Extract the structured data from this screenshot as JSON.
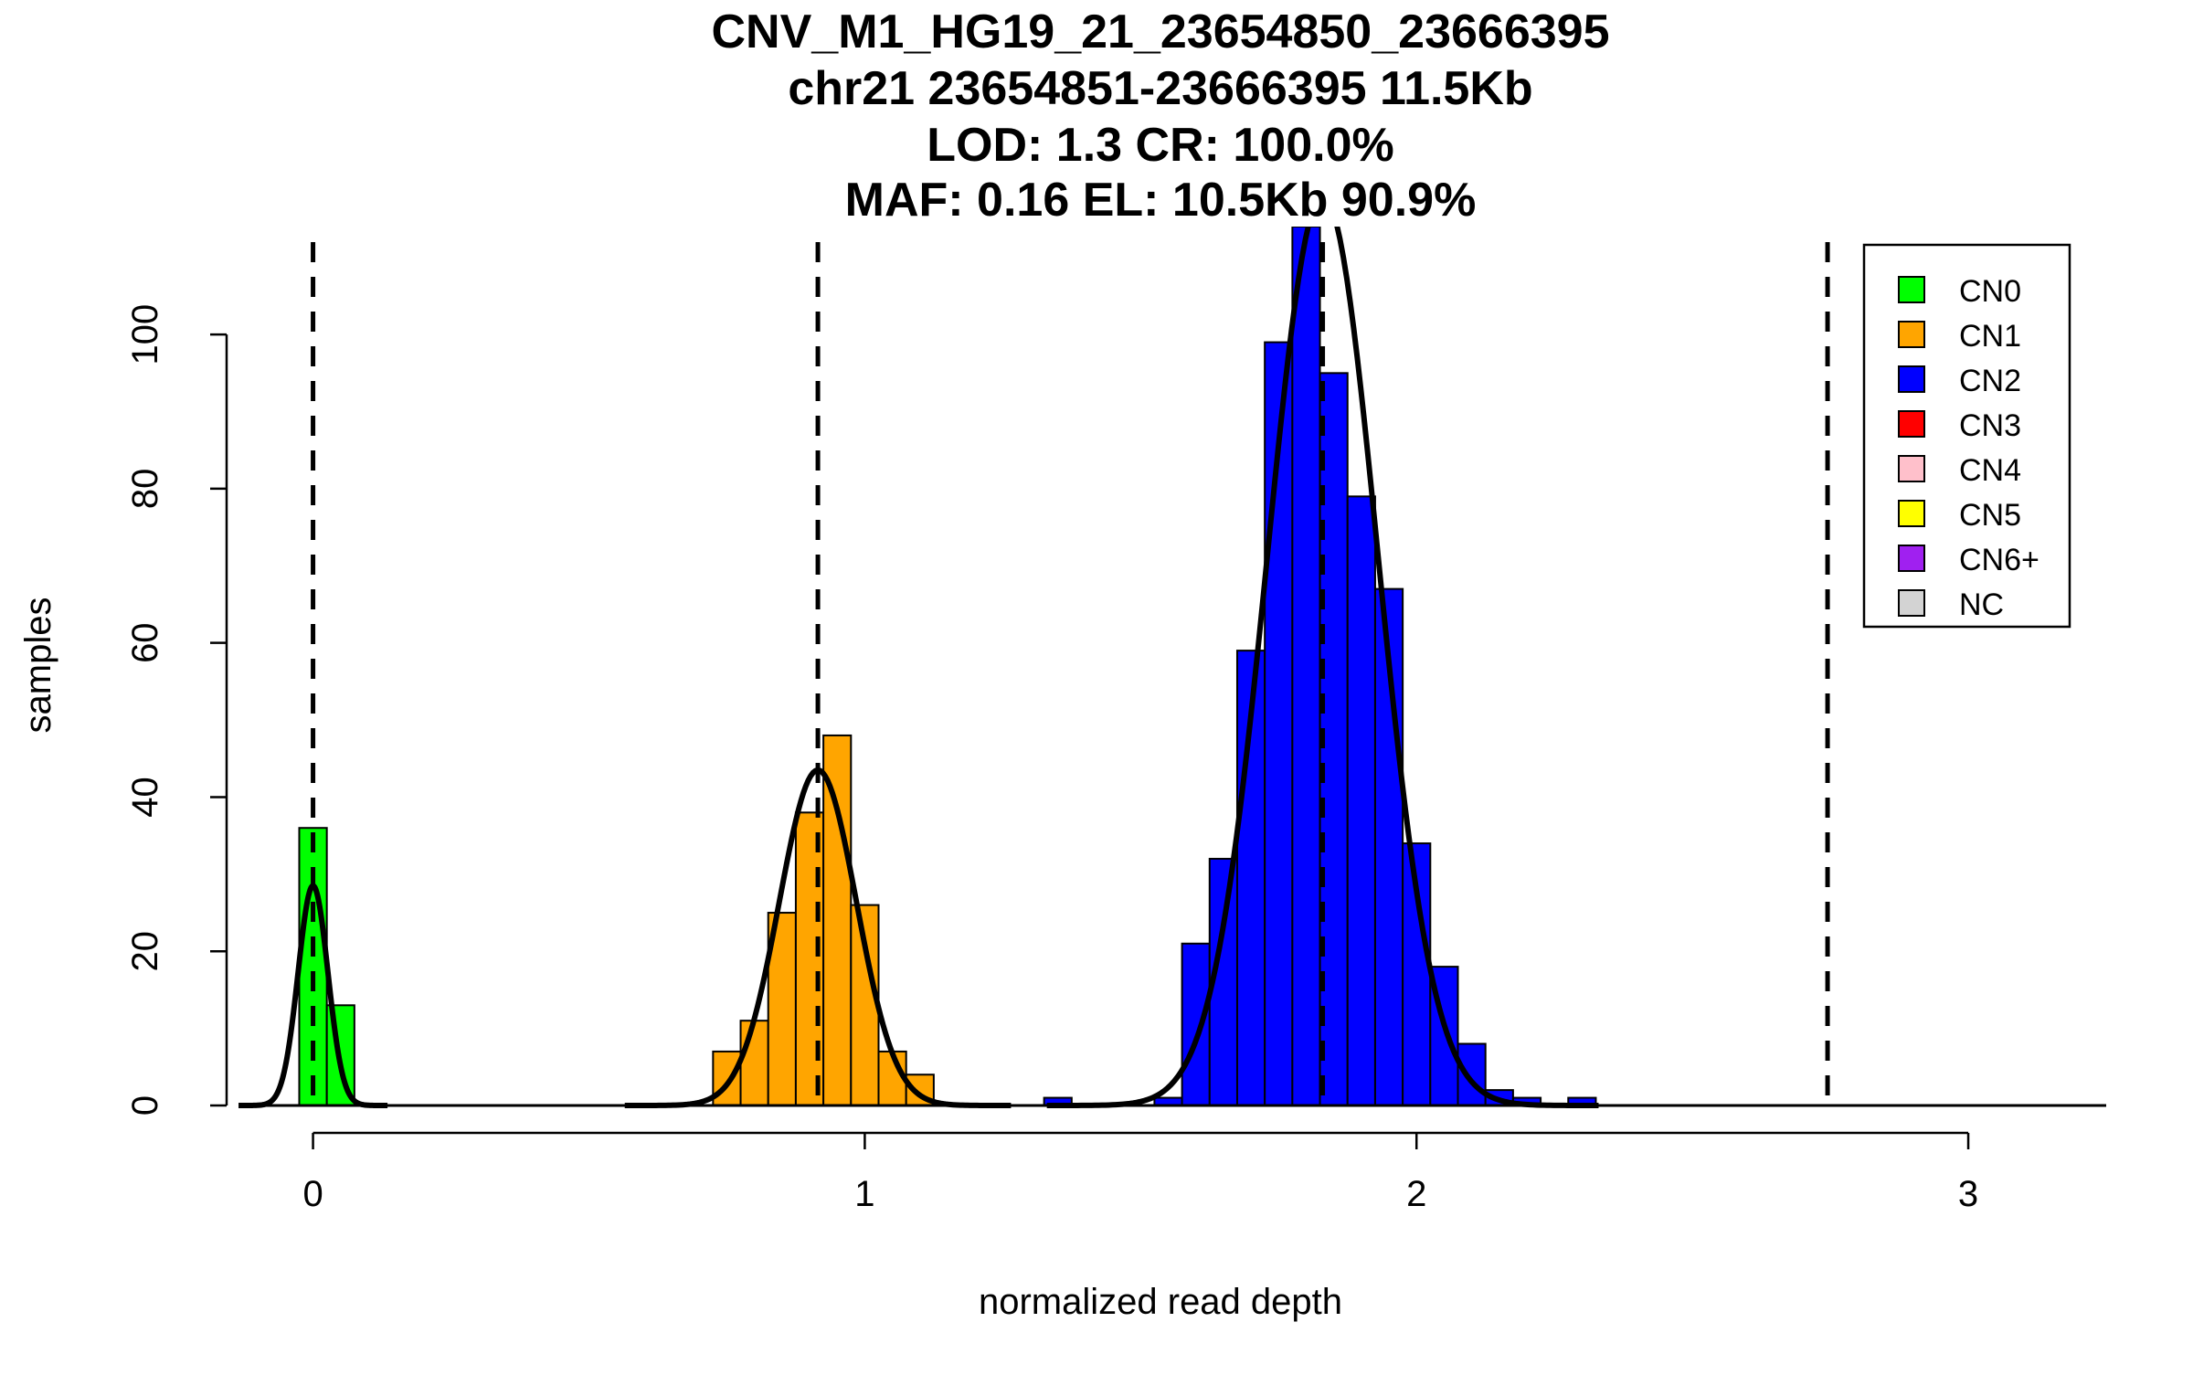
{
  "chart_data": {
    "type": "bar",
    "title_lines": [
      "CNV_M1_HG19_21_23654850_23666395",
      "chr21 23654851-23666395 11.5Kb",
      "LOD: 1.3 CR: 100.0%",
      "MAF: 0.16 EL: 10.5Kb 90.9%"
    ],
    "xlabel": "normalized read depth",
    "ylabel": "samples",
    "xlim": [
      -0.15,
      3.25
    ],
    "ylim": [
      0,
      114
    ],
    "x_ticks": [
      0,
      1,
      2,
      3
    ],
    "x_tick_labels": [
      "0",
      "1",
      "2",
      "3"
    ],
    "y_ticks": [
      0,
      20,
      40,
      60,
      80,
      100
    ],
    "y_tick_labels": [
      "0",
      "20",
      "40",
      "60",
      "80",
      "100"
    ],
    "bin_width": 0.05,
    "series": [
      {
        "name": "CN0",
        "color": "#00ff00",
        "bins": [
          {
            "x0": -0.025,
            "count": 36
          },
          {
            "x0": 0.025,
            "count": 13
          }
        ]
      },
      {
        "name": "CN1",
        "color": "#ffa500",
        "bins": [
          {
            "x0": 0.725,
            "count": 7
          },
          {
            "x0": 0.775,
            "count": 11
          },
          {
            "x0": 0.825,
            "count": 25
          },
          {
            "x0": 0.875,
            "count": 38
          },
          {
            "x0": 0.925,
            "count": 48
          },
          {
            "x0": 0.975,
            "count": 26
          },
          {
            "x0": 1.025,
            "count": 7
          },
          {
            "x0": 1.075,
            "count": 4
          }
        ]
      },
      {
        "name": "CN2",
        "color": "#0000ff",
        "bins": [
          {
            "x0": 1.325,
            "count": 1
          },
          {
            "x0": 1.525,
            "count": 1
          },
          {
            "x0": 1.575,
            "count": 21
          },
          {
            "x0": 1.625,
            "count": 32
          },
          {
            "x0": 1.675,
            "count": 59
          },
          {
            "x0": 1.725,
            "count": 99
          },
          {
            "x0": 1.775,
            "count": 114
          },
          {
            "x0": 1.825,
            "count": 95
          },
          {
            "x0": 1.875,
            "count": 79
          },
          {
            "x0": 1.925,
            "count": 67
          },
          {
            "x0": 1.975,
            "count": 34
          },
          {
            "x0": 2.025,
            "count": 18
          },
          {
            "x0": 2.075,
            "count": 8
          },
          {
            "x0": 2.125,
            "count": 2
          },
          {
            "x0": 2.175,
            "count": 1
          },
          {
            "x0": 2.275,
            "count": 1
          }
        ]
      }
    ],
    "fit_curves": [
      {
        "mean": 0.0,
        "sd": 0.027,
        "peak": 28.5
      },
      {
        "mean": 0.915,
        "sd": 0.07,
        "peak": 43.5
      },
      {
        "mean": 1.83,
        "sd": 0.1,
        "peak": 118
      }
    ],
    "dashed_lines_x": [
      0.0,
      0.915,
      1.83,
      2.745
    ],
    "legend": {
      "placement": "top-right",
      "items": [
        {
          "label": "CN0",
          "color": "#00ff00"
        },
        {
          "label": "CN1",
          "color": "#ffa500"
        },
        {
          "label": "CN2",
          "color": "#0000ff"
        },
        {
          "label": "CN3",
          "color": "#ff0000"
        },
        {
          "label": "CN4",
          "color": "#ffc0cb"
        },
        {
          "label": "CN5",
          "color": "#ffff00"
        },
        {
          "label": "CN6+",
          "color": "#a020f0"
        },
        {
          "label": "NC",
          "color": "#d3d3d3"
        }
      ]
    }
  }
}
